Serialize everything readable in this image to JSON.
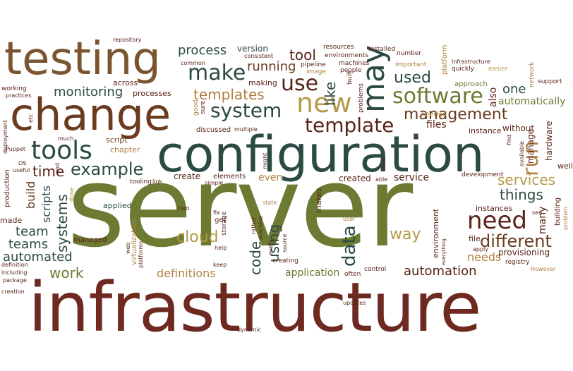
{
  "palette": {
    "brown": "#6b3a1f",
    "dark_red": "#6e2a20",
    "olive": "#6c7a32",
    "teal": "#2c4a44",
    "khaki": "#b59a47",
    "tan": "#b08040",
    "maroon": "#5a2318"
  },
  "words": [
    {
      "t": "server"
    },
    {
      "t": "infrastructure"
    },
    {
      "t": "configuration"
    },
    {
      "t": "change"
    },
    {
      "t": "testing"
    },
    {
      "t": "tools"
    },
    {
      "t": "new"
    },
    {
      "t": "may"
    },
    {
      "t": "system"
    },
    {
      "t": "make"
    },
    {
      "t": "use"
    },
    {
      "t": "template"
    },
    {
      "t": "software"
    },
    {
      "t": "management"
    },
    {
      "t": "need"
    },
    {
      "t": "run"
    },
    {
      "t": "example"
    },
    {
      "t": "templates"
    },
    {
      "t": "process"
    },
    {
      "t": "running"
    },
    {
      "t": "tool"
    },
    {
      "t": "used"
    },
    {
      "t": "like"
    },
    {
      "t": "one"
    },
    {
      "t": "also"
    },
    {
      "t": "automatically"
    },
    {
      "t": "monitoring"
    },
    {
      "t": "time"
    },
    {
      "t": "services"
    },
    {
      "t": "things"
    },
    {
      "t": "different"
    },
    {
      "t": "cloud"
    },
    {
      "t": "way"
    },
    {
      "t": "data"
    },
    {
      "t": "code"
    },
    {
      "t": "using"
    },
    {
      "t": "team"
    },
    {
      "t": "teams"
    },
    {
      "t": "automated"
    },
    {
      "t": "work"
    },
    {
      "t": "definitions"
    },
    {
      "t": "application"
    },
    {
      "t": "automation"
    },
    {
      "t": "needs"
    },
    {
      "t": "systems"
    },
    {
      "t": "scripts"
    },
    {
      "t": "build"
    },
    {
      "t": "files"
    },
    {
      "t": "service"
    },
    {
      "t": "even"
    },
    {
      "t": "created"
    },
    {
      "t": "create"
    },
    {
      "t": "file"
    },
    {
      "t": "provisioning"
    },
    {
      "t": "hardware"
    },
    {
      "t": "many"
    },
    {
      "t": "manage"
    },
    {
      "t": "instance"
    },
    {
      "t": "without"
    },
    {
      "t": "version"
    },
    {
      "t": "makes"
    },
    {
      "t": "environment"
    },
    {
      "t": "instances"
    },
    {
      "t": "well"
    },
    {
      "t": "made"
    },
    {
      "t": "chapter"
    },
    {
      "t": "script"
    },
    {
      "t": "across"
    },
    {
      "t": "processes"
    },
    {
      "t": "making"
    },
    {
      "t": "machines"
    },
    {
      "t": "environments"
    },
    {
      "t": "resources"
    },
    {
      "t": "installed"
    },
    {
      "t": "number"
    },
    {
      "t": "platform"
    },
    {
      "t": "approach"
    },
    {
      "t": "quickly"
    },
    {
      "t": "easier"
    },
    {
      "t": "support"
    },
    {
      "t": "network"
    },
    {
      "t": "Infrastructure"
    },
    {
      "t": "important"
    },
    {
      "t": "pipeline"
    },
    {
      "t": "image"
    },
    {
      "t": "people"
    },
    {
      "t": "built"
    },
    {
      "t": "problems"
    },
    {
      "t": "repository"
    },
    {
      "t": "consistent"
    },
    {
      "t": "common"
    },
    {
      "t": "working"
    },
    {
      "t": "practices"
    },
    {
      "t": "etc"
    },
    {
      "t": "good"
    },
    {
      "t": "sure"
    },
    {
      "t": "discussed"
    },
    {
      "t": "multiple"
    },
    {
      "t": "needed"
    },
    {
      "t": "deployment"
    },
    {
      "t": "Puppet"
    },
    {
      "t": "much"
    },
    {
      "t": "OS"
    },
    {
      "t": "end"
    },
    {
      "t": "useful"
    },
    {
      "t": "production"
    },
    {
      "t": "tooling"
    },
    {
      "t": "link"
    },
    {
      "t": "done"
    },
    {
      "t": "elements"
    },
    {
      "t": "simple"
    },
    {
      "t": "might"
    },
    {
      "t": "find"
    },
    {
      "t": "available"
    },
    {
      "t": "development"
    },
    {
      "t": "tend"
    },
    {
      "t": "able"
    },
    {
      "t": "applied"
    },
    {
      "t": "two"
    },
    {
      "t": "fix"
    },
    {
      "t": "get"
    },
    {
      "t": "storage"
    },
    {
      "t": "state"
    },
    {
      "t": "rather"
    },
    {
      "t": "machine"
    },
    {
      "t": "user"
    },
    {
      "t": "source"
    },
    {
      "t": "every"
    },
    {
      "t": "creating"
    },
    {
      "t": "keep"
    },
    {
      "t": "help"
    },
    {
      "t": "managed"
    },
    {
      "t": "virtualization"
    },
    {
      "t": "web"
    },
    {
      "t": "platforms"
    },
    {
      "t": "everything"
    },
    {
      "t": "apply"
    },
    {
      "t": "registry"
    },
    {
      "t": "However"
    },
    {
      "t": "building"
    },
    {
      "t": "problem"
    },
    {
      "t": "see"
    },
    {
      "t": "definition"
    },
    {
      "t": "including"
    },
    {
      "t": "package"
    },
    {
      "t": "creation"
    },
    {
      "t": "often"
    },
    {
      "t": "control"
    },
    {
      "t": "updates"
    },
    {
      "t": "dynamic"
    }
  ]
}
